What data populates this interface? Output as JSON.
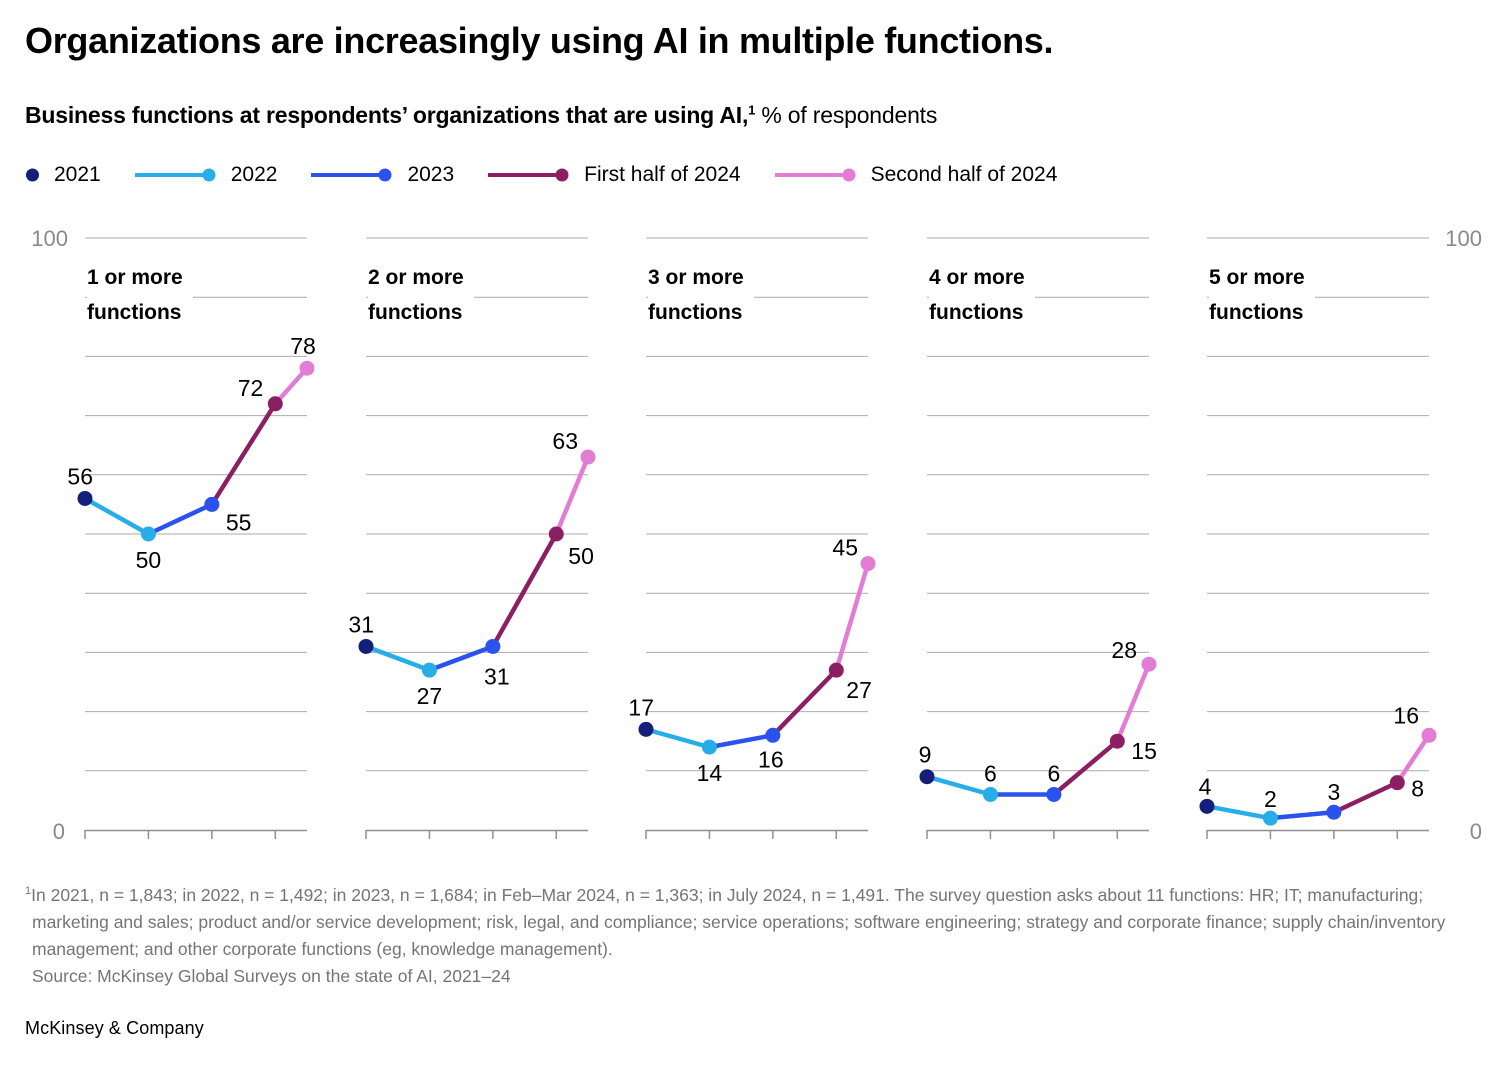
{
  "header": {
    "title": "Organizations are increasingly using AI in multiple functions.",
    "subtitle_bold": "Business functions at respondents’ organizations that are using AI,",
    "subtitle_sup": "1",
    "subtitle_rest": " % of respondents"
  },
  "legend": [
    {
      "label": "2021",
      "color": "#131F7B",
      "marker": "dot"
    },
    {
      "label": "2022",
      "color": "#27AEE8",
      "marker": "line-dot"
    },
    {
      "label": "2023",
      "color": "#2A52EF",
      "marker": "line-dot"
    },
    {
      "label": "First half of 2024",
      "color": "#8C1F62",
      "marker": "line-dot"
    },
    {
      "label": "Second half of 2024",
      "color": "#E27CD5",
      "marker": "line-dot"
    }
  ],
  "axis": {
    "y_max_label": "100",
    "y_min_label": "0"
  },
  "chart_data": {
    "type": "line",
    "categories": [
      "2021",
      "2022",
      "2023",
      "First half of 2024",
      "Second half of 2024"
    ],
    "x_positions": [
      0,
      1,
      2,
      3,
      3.5
    ],
    "ylim": [
      0,
      100
    ],
    "grid_step": 10,
    "grid": "on",
    "point_colors": [
      "#131F7B",
      "#27AEE8",
      "#2A52EF",
      "#8C1F62",
      "#E27CD5"
    ],
    "panels": [
      {
        "title": "1 or more functions",
        "values": [
          56,
          50,
          55,
          72,
          78
        ]
      },
      {
        "title": "2 or more functions",
        "values": [
          31,
          27,
          31,
          50,
          63
        ]
      },
      {
        "title": "3 or more functions",
        "values": [
          17,
          14,
          16,
          27,
          45
        ]
      },
      {
        "title": "4 or more functions",
        "values": [
          9,
          6,
          6,
          15,
          28
        ]
      },
      {
        "title": "5 or more functions",
        "values": [
          4,
          2,
          3,
          8,
          16
        ]
      }
    ]
  },
  "footnote": {
    "sup": "1",
    "text": "In 2021, n = 1,843; in 2022, n = 1,492; in 2023, n = 1,684; in Feb–Mar 2024, n = 1,363; in July 2024, n = 1,491. The survey question asks about 11 functions: HR; IT; manufacturing; marketing and sales; product and/or service development; risk, legal, and compliance; service operations; software engineering; strategy and corporate finance; supply chain/inventory management; and other corporate functions (eg, knowledge management).",
    "source": "Source: McKinsey Global Surveys on the state of AI, 2021–24"
  },
  "brand": "McKinsey & Company"
}
